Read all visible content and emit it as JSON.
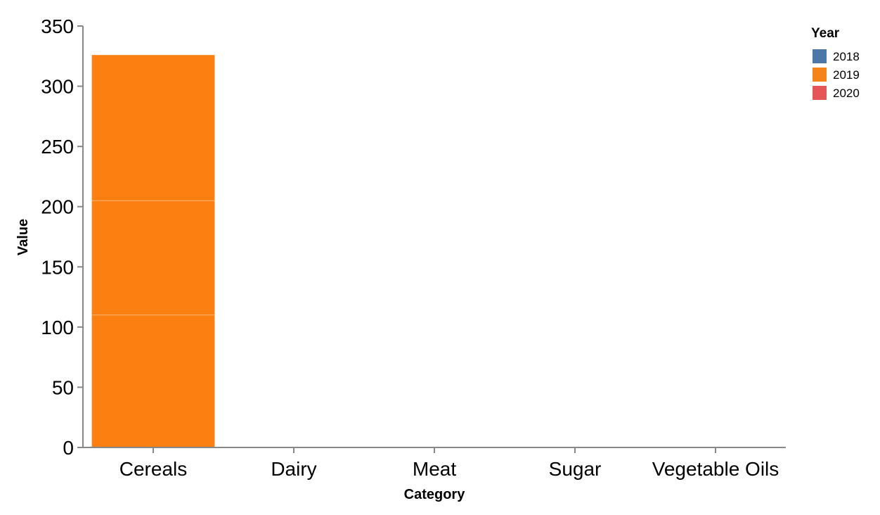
{
  "chart_data": {
    "type": "bar",
    "stacked": true,
    "x_field": "Category",
    "xlabel": "Category",
    "ylabel": "Value",
    "categories": [
      "Cereals",
      "Dairy",
      "Meat",
      "Sugar",
      "Vegetable Oils"
    ],
    "ylim": [
      0,
      350
    ],
    "yticks": [
      0,
      50,
      100,
      150,
      200,
      250,
      300,
      350
    ],
    "grid": false,
    "legend": {
      "title": "Year",
      "placement": "top-right",
      "entries": [
        {
          "label": "2018",
          "color": "#4c78a8"
        },
        {
          "label": "2019",
          "color": "#f58518"
        },
        {
          "label": "2020",
          "color": "#e45756"
        }
      ]
    },
    "segments": [
      {
        "category": "Cereals",
        "start": 0,
        "end": 110,
        "color": "#fb7f11"
      },
      {
        "category": "Cereals",
        "start": 110,
        "end": 205,
        "color": "#fb7f11"
      },
      {
        "category": "Cereals",
        "start": 205,
        "end": 326,
        "color": "#fb7f11"
      }
    ]
  }
}
